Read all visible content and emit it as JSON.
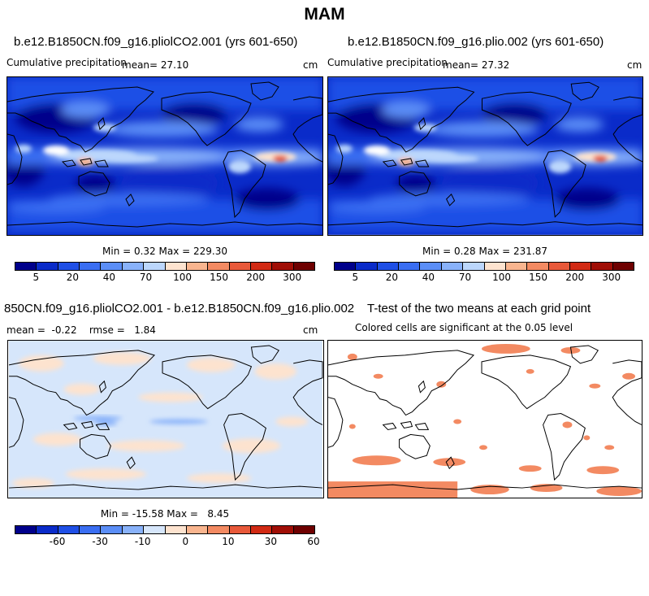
{
  "figure_title": "MAM",
  "panels": {
    "p1": {
      "title": "b.e12.B1850CN.f09_g16.pliolCO2.001 (yrs 601-650)",
      "left_label": "Cumulative precipitation",
      "mean_label": "mean=  27.10",
      "units": "cm",
      "stats": "Min =   0.32 Max = 229.30"
    },
    "p2": {
      "title": "b.e12.B1850CN.f09_g16.plio.002 (yrs 601-650)",
      "left_label": "Cumulative precipitation",
      "mean_label": "mean=  27.32",
      "units": "cm",
      "stats": "Min =   0.28 Max = 231.87"
    },
    "p3": {
      "title": "850CN.f09_g16.pliolCO2.001 - b.e12.B1850CN.f09_g16.plio.002",
      "left_label": "mean =  -0.22    rmse =   1.84",
      "units": "cm",
      "stats": "Min = -15.58 Max =   8.45"
    },
    "p4": {
      "title": "T-test of the two means at each grid point",
      "subtitle": "Colored cells are significant at the 0.05 level"
    }
  },
  "colorbars": {
    "precip": {
      "colors": [
        "#00008b",
        "#0a2bc9",
        "#1f4fe6",
        "#3a6ef2",
        "#5b8ef7",
        "#89b2fa",
        "#bcd7fc",
        "#fde3cf",
        "#f9b58f",
        "#f38a62",
        "#e8593a",
        "#d12a14",
        "#a00e06",
        "#6e0000"
      ],
      "tick_labels": [
        "5",
        "20",
        "40",
        "70",
        "100",
        "150",
        "200",
        "300"
      ]
    },
    "diff": {
      "colors": [
        "#00008b",
        "#0a2bc9",
        "#1f4fe6",
        "#3a6ef2",
        "#5b8ef7",
        "#89b2fa",
        "#d6e6fb",
        "#fde3cf",
        "#f9b58f",
        "#f38a62",
        "#e8593a",
        "#d12a14",
        "#a00e06",
        "#6e0000"
      ],
      "tick_labels": [
        "-60",
        "-30",
        "-10",
        "0",
        "10",
        "30",
        "60"
      ]
    }
  },
  "chart_data": [
    {
      "type": "heatmap",
      "title": "b.e12.B1850CN.f09_g16.pliolCO2.001 (yrs 601-650)",
      "variable": "Cumulative precipitation",
      "units": "cm",
      "mean": 27.1,
      "min": 0.32,
      "max": 229.3,
      "colorbar_levels": [
        5,
        20,
        40,
        70,
        100,
        150,
        200,
        300
      ]
    },
    {
      "type": "heatmap",
      "title": "b.e12.B1850CN.f09_g16.plio.002 (yrs 601-650)",
      "variable": "Cumulative precipitation",
      "units": "cm",
      "mean": 27.32,
      "min": 0.28,
      "max": 231.87,
      "colorbar_levels": [
        5,
        20,
        40,
        70,
        100,
        150,
        200,
        300
      ]
    },
    {
      "type": "heatmap",
      "title": "850CN.f09_g16.pliolCO2.001 - b.e12.B1850CN.f09_g16.plio.002",
      "units": "cm",
      "mean": -0.22,
      "rmse": 1.84,
      "min": -15.58,
      "max": 8.45,
      "colorbar_levels": [
        -60,
        -30,
        -10,
        0,
        10,
        30,
        60
      ]
    },
    {
      "type": "heatmap",
      "title": "T-test of the two means at each grid point",
      "subtitle": "Colored cells are significant at the 0.05 level",
      "significance_level": 0.05
    }
  ]
}
